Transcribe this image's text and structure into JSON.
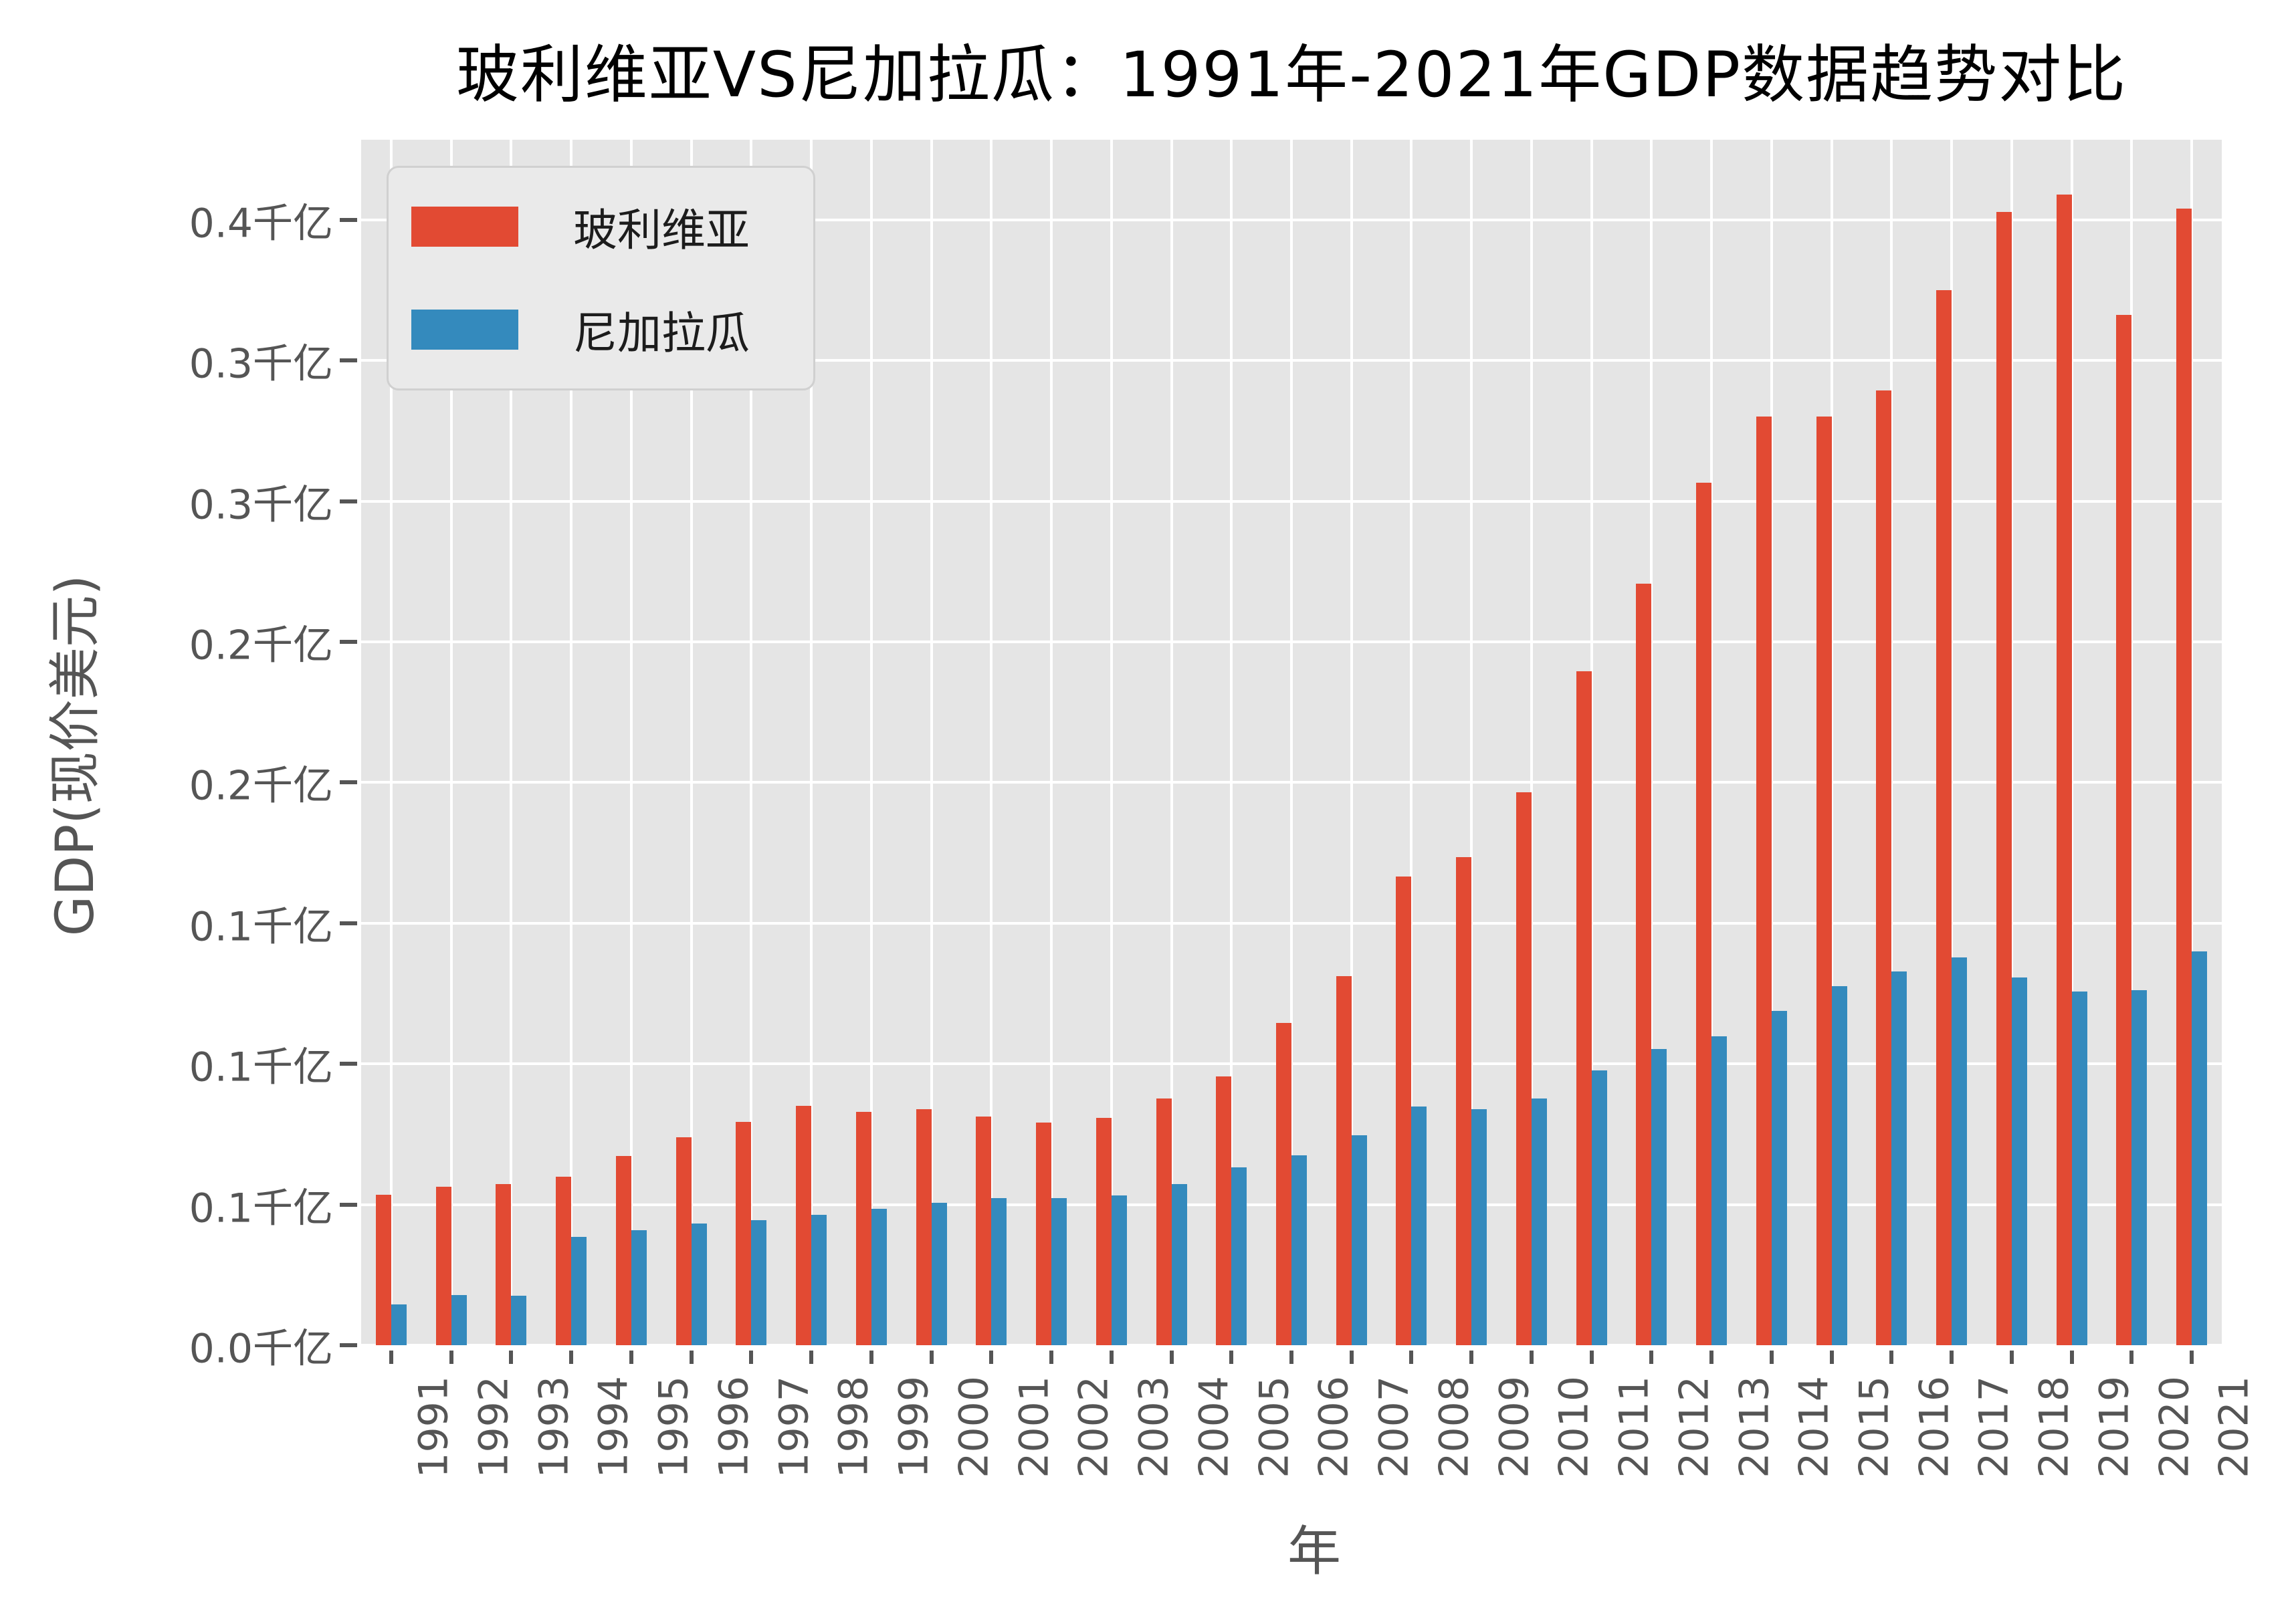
{
  "title": "玻利维亚VS尼加拉瓜：1991年-2021年GDP数据趋势对比",
  "axes": {
    "x_title": "年",
    "y_title": "GDP(现价美元)",
    "y_unit_suffix": "千亿",
    "y_ticks": [
      {
        "value": 0.0,
        "label": "0.0千亿"
      },
      {
        "value": 0.05,
        "label": "0.1千亿"
      },
      {
        "value": 0.1,
        "label": "0.1千亿"
      },
      {
        "value": 0.15,
        "label": "0.1千亿"
      },
      {
        "value": 0.2,
        "label": "0.2千亿"
      },
      {
        "value": 0.25,
        "label": "0.2千亿"
      },
      {
        "value": 0.3,
        "label": "0.3千亿"
      },
      {
        "value": 0.35,
        "label": "0.3千亿"
      },
      {
        "value": 0.4,
        "label": "0.4千亿"
      }
    ]
  },
  "legend": {
    "items": [
      {
        "label": "玻利维亚",
        "color": "#E24A33"
      },
      {
        "label": "尼加拉瓜",
        "color": "#348ABD"
      }
    ]
  },
  "colors": {
    "series_bolivia": "#E24A33",
    "series_nicaragua": "#348ABD",
    "plot_background": "#E5E5E5",
    "gridline": "#FFFFFF",
    "tick_text": "#555555",
    "title_text": "#000000",
    "figure_background": "#FFFFFF"
  },
  "chart_data": {
    "type": "bar",
    "title": "玻利维亚VS尼加拉瓜：1991年-2021年GDP数据趋势对比",
    "xlabel": "年",
    "ylabel": "GDP(现价美元)",
    "unit_of_values": "十亿美元(billion current US$)",
    "y_axis_display_unit": "千亿 (= 100 billion US$)",
    "ylim_in_qianyi": [
      0,
      0.4285
    ],
    "y_tick_step_qianyi": 0.05,
    "y_tick_labels_bottom_to_top": [
      "0.0千亿",
      "0.1千亿",
      "0.1千亿",
      "0.1千亿",
      "0.2千亿",
      "0.2千亿",
      "0.3千亿",
      "0.3千亿",
      "0.4千亿"
    ],
    "grid": true,
    "legend_position": "upper left",
    "categories": [
      1991,
      1992,
      1993,
      1994,
      1995,
      1996,
      1997,
      1998,
      1999,
      2000,
      2001,
      2002,
      2003,
      2004,
      2005,
      2006,
      2007,
      2008,
      2009,
      2010,
      2011,
      2012,
      2013,
      2014,
      2015,
      2016,
      2017,
      2018,
      2019,
      2020,
      2021
    ],
    "series": [
      {
        "name": "玻利维亚",
        "color": "#E24A33",
        "values": [
          5.34,
          5.64,
          5.73,
          5.98,
          6.72,
          7.4,
          7.93,
          8.5,
          8.29,
          8.4,
          8.14,
          7.91,
          8.08,
          8.77,
          9.55,
          11.45,
          13.12,
          16.67,
          17.34,
          19.65,
          23.96,
          27.08,
          30.66,
          33.0,
          33.0,
          33.94,
          37.51,
          40.29,
          40.9,
          36.63,
          40.41
        ]
      },
      {
        "name": "尼加拉瓜",
        "color": "#348ABD",
        "values": [
          1.46,
          1.79,
          1.76,
          3.86,
          4.09,
          4.32,
          4.45,
          4.63,
          4.85,
          5.07,
          5.22,
          5.22,
          5.32,
          5.72,
          6.32,
          6.76,
          7.46,
          8.49,
          8.38,
          8.76,
          9.77,
          10.53,
          10.98,
          11.88,
          12.76,
          13.29,
          13.79,
          13.06,
          12.57,
          12.62,
          14.01
        ]
      }
    ]
  }
}
